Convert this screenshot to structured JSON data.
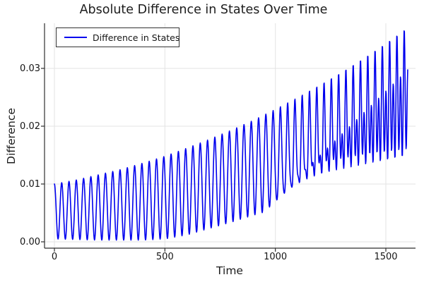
{
  "title": "Absolute Difference in States Over Time",
  "legend": {
    "label": "Difference in States",
    "position": "top-left"
  },
  "axes": {
    "xlabel": "Time",
    "ylabel": "Difference"
  },
  "chart_data": {
    "type": "line",
    "title": "Absolute Difference in States Over Time",
    "xlabel": "Time",
    "ylabel": "Difference",
    "grid": true,
    "legend_entries": [
      "Difference in States"
    ],
    "line_color": "#0000ee",
    "grid_color": "#e3e3e3",
    "spine_color": "#2f2f2f",
    "text_color": "#151515",
    "xlim": [
      -45,
      1630
    ],
    "ylim": [
      -0.0011,
      0.0378
    ],
    "x_ticks": [
      {
        "label": "0",
        "t": 0
      },
      {
        "label": "500",
        "t": 500
      },
      {
        "label": "1000",
        "t": 1000
      },
      {
        "label": "1500",
        "t": 1500
      }
    ],
    "y_ticks": [
      {
        "label": "0.00",
        "v": 0.0
      },
      {
        "label": "0.01",
        "v": 0.01
      },
      {
        "label": "0.02",
        "v": 0.02
      },
      {
        "label": "0.03",
        "v": 0.03
      }
    ],
    "signal": {
      "description": "Absolute difference of two oscillator states: rapid oscillation (period ~33 time units, ~48 cycles) between a rising lower envelope and a rising upper envelope; starts at 0.010, peaks reach ~0.037 by t=1600; a secondary per-cycle shoulder appears after t~950.",
      "t_start": 0,
      "t_end": 1600,
      "dt": 1.5,
      "period": 33,
      "envelope_t_step": 100,
      "upper_envelope": [
        0.01,
        0.0107,
        0.0116,
        0.0125,
        0.0136,
        0.0148,
        0.0162,
        0.0177,
        0.0193,
        0.021,
        0.0229,
        0.0249,
        0.027,
        0.0292,
        0.0316,
        0.0341,
        0.0368
      ],
      "lower_envelope": [
        0.0005,
        0.0004,
        0.0003,
        0.0003,
        0.0003,
        0.0005,
        0.0012,
        0.0023,
        0.0034,
        0.0046,
        0.0057,
        0.0068,
        0.008,
        0.0091,
        0.0102,
        0.0113,
        0.0124
      ],
      "second_harmonic": {
        "t_onset": 950,
        "t_full": 1600,
        "max_amp": 0.009,
        "phase": 0.35
      }
    }
  }
}
